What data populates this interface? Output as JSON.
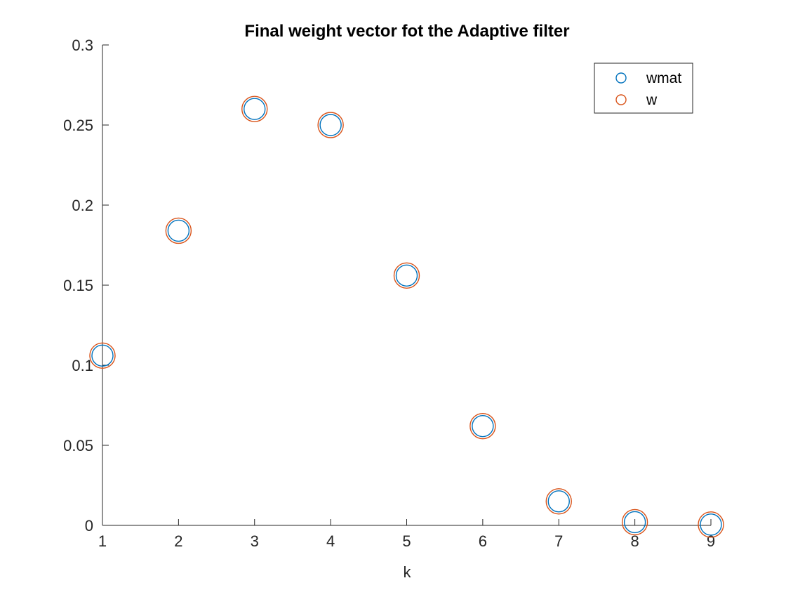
{
  "chart_data": {
    "type": "scatter",
    "title": "Final weight vector fot the Adaptive filter",
    "xlabel": "k",
    "ylabel": "",
    "xlim": [
      1,
      9
    ],
    "ylim": [
      0,
      0.3
    ],
    "x_ticks": [
      "1",
      "2",
      "3",
      "4",
      "5",
      "6",
      "7",
      "8",
      "9"
    ],
    "y_ticks": [
      "0",
      "0.05",
      "0.1",
      "0.15",
      "0.2",
      "0.25",
      "0.3"
    ],
    "x": [
      1,
      2,
      3,
      4,
      5,
      6,
      7,
      8,
      9
    ],
    "series": [
      {
        "name": "wmat",
        "color": "#0072BD",
        "marker": "circle",
        "values": [
          0.106,
          0.184,
          0.26,
          0.25,
          0.156,
          0.062,
          0.015,
          0.002,
          0.0005
        ]
      },
      {
        "name": "w",
        "color": "#D95319",
        "marker": "circle",
        "values": [
          0.106,
          0.184,
          0.26,
          0.25,
          0.156,
          0.062,
          0.015,
          0.002,
          0.0005
        ]
      }
    ],
    "grid": false,
    "legend_position": "top-right"
  }
}
